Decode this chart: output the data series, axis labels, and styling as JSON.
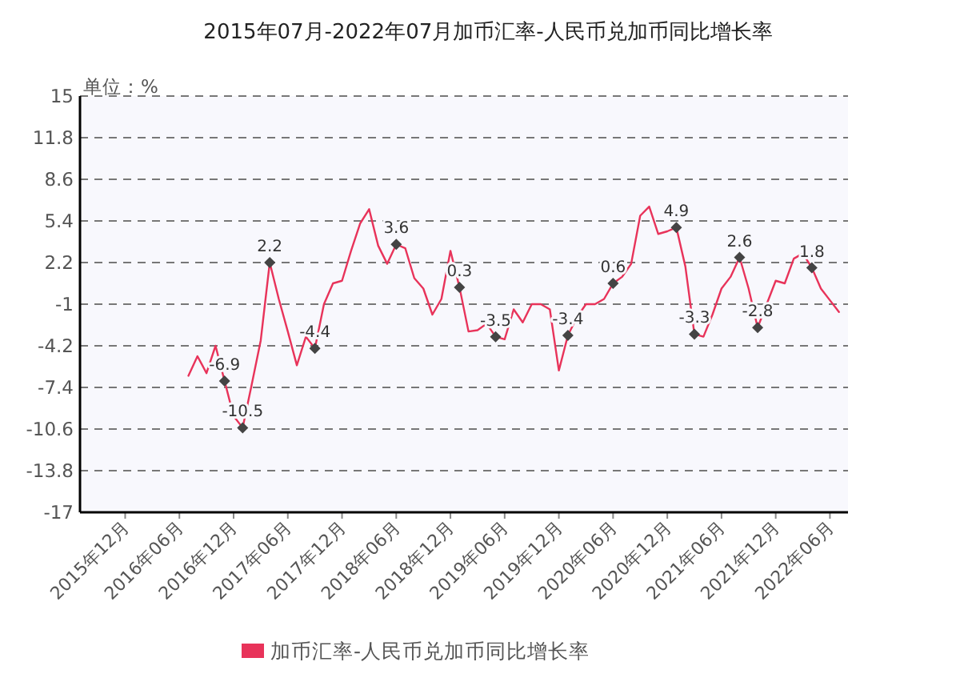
{
  "chart_data": {
    "type": "line",
    "title": "2015年07月-2022年07月加币汇率-人民币兑加币同比增长率",
    "ylabel": "单位：%",
    "xlim": [
      "2015-07",
      "2022-08"
    ],
    "ylim": [
      -17,
      15
    ],
    "yticks": [
      -17,
      -13.8,
      -10.6,
      -7.4,
      -4.2,
      -1,
      2.2,
      5.4,
      8.6,
      11.8,
      15
    ],
    "xticks": [
      {
        "value": "2015-12",
        "label": "2015年12月"
      },
      {
        "value": "2016-06",
        "label": "2016年06月"
      },
      {
        "value": "2016-12",
        "label": "2016年12月"
      },
      {
        "value": "2017-06",
        "label": "2017年06月"
      },
      {
        "value": "2017-12",
        "label": "2017年12月"
      },
      {
        "value": "2018-06",
        "label": "2018年06月"
      },
      {
        "value": "2018-12",
        "label": "2018年12月"
      },
      {
        "value": "2019-06",
        "label": "2019年06月"
      },
      {
        "value": "2019-12",
        "label": "2019年12月"
      },
      {
        "value": "2020-06",
        "label": "2020年06月"
      },
      {
        "value": "2020-12",
        "label": "2020年12月"
      },
      {
        "value": "2021-06",
        "label": "2021年06月"
      },
      {
        "value": "2021-12",
        "label": "2021年12月"
      },
      {
        "value": "2022-06",
        "label": "2022年06月"
      }
    ],
    "grid": "y",
    "legend": "bottom",
    "x": [
      "2016-07",
      "2016-08",
      "2016-09",
      "2016-10",
      "2016-11",
      "2016-12",
      "2017-01",
      "2017-02",
      "2017-03",
      "2017-04",
      "2017-05",
      "2017-06",
      "2017-07",
      "2017-08",
      "2017-09",
      "2017-10",
      "2017-11",
      "2017-12",
      "2018-01",
      "2018-02",
      "2018-03",
      "2018-04",
      "2018-05",
      "2018-06",
      "2018-07",
      "2018-08",
      "2018-09",
      "2018-10",
      "2018-11",
      "2018-12",
      "2019-01",
      "2019-02",
      "2019-03",
      "2019-04",
      "2019-05",
      "2019-06",
      "2019-07",
      "2019-08",
      "2019-09",
      "2019-10",
      "2019-11",
      "2019-12",
      "2020-01",
      "2020-02",
      "2020-03",
      "2020-04",
      "2020-05",
      "2020-06",
      "2020-07",
      "2020-08",
      "2020-09",
      "2020-10",
      "2020-11",
      "2020-12",
      "2021-01",
      "2021-02",
      "2021-03",
      "2021-04",
      "2021-05",
      "2021-06",
      "2021-07",
      "2021-08",
      "2021-09",
      "2021-10",
      "2021-11",
      "2021-12",
      "2022-01",
      "2022-02",
      "2022-03",
      "2022-04",
      "2022-05",
      "2022-06",
      "2022-07"
    ],
    "series": [
      {
        "name": "加币汇率-人民币兑加币同比增长率",
        "color": "#e8335a",
        "values": [
          -6.5,
          -5.0,
          -6.3,
          -4.2,
          -6.9,
          -9.6,
          -10.5,
          -7.2,
          -3.8,
          2.2,
          -0.6,
          -3.1,
          -5.7,
          -3.5,
          -4.4,
          -1.0,
          0.6,
          0.8,
          3.1,
          5.2,
          6.3,
          3.5,
          2.1,
          3.6,
          3.3,
          1.0,
          0.2,
          -1.8,
          -0.6,
          3.1,
          0.3,
          -3.1,
          -3.0,
          -2.5,
          -3.5,
          -3.7,
          -1.4,
          -2.4,
          -1.0,
          -1.0,
          -1.4,
          -6.1,
          -3.4,
          -2.0,
          -1.0,
          -1.0,
          -0.6,
          0.6,
          1.1,
          2.1,
          5.8,
          6.5,
          4.4,
          4.6,
          4.9,
          1.9,
          -3.3,
          -3.5,
          -1.8,
          0.2,
          1.1,
          2.6,
          0.2,
          -2.8,
          -1.0,
          0.8,
          0.6,
          2.5,
          2.9,
          1.8,
          0.2,
          -0.7,
          -1.6
        ],
        "value_labels": [
          null,
          null,
          null,
          null,
          "-6.9",
          null,
          "-10.5",
          null,
          null,
          "2.2",
          null,
          null,
          null,
          null,
          "-4.4",
          null,
          null,
          null,
          null,
          null,
          null,
          null,
          null,
          "3.6",
          null,
          null,
          null,
          null,
          null,
          null,
          "0.3",
          null,
          null,
          null,
          "-3.5",
          null,
          null,
          null,
          null,
          null,
          null,
          null,
          "-3.4",
          null,
          null,
          null,
          null,
          "0.6",
          null,
          null,
          null,
          null,
          null,
          null,
          "4.9",
          null,
          "-3.3",
          null,
          null,
          null,
          null,
          "2.6",
          null,
          "-2.8",
          null,
          null,
          null,
          null,
          null,
          "1.8",
          null,
          null,
          null
        ]
      }
    ]
  }
}
